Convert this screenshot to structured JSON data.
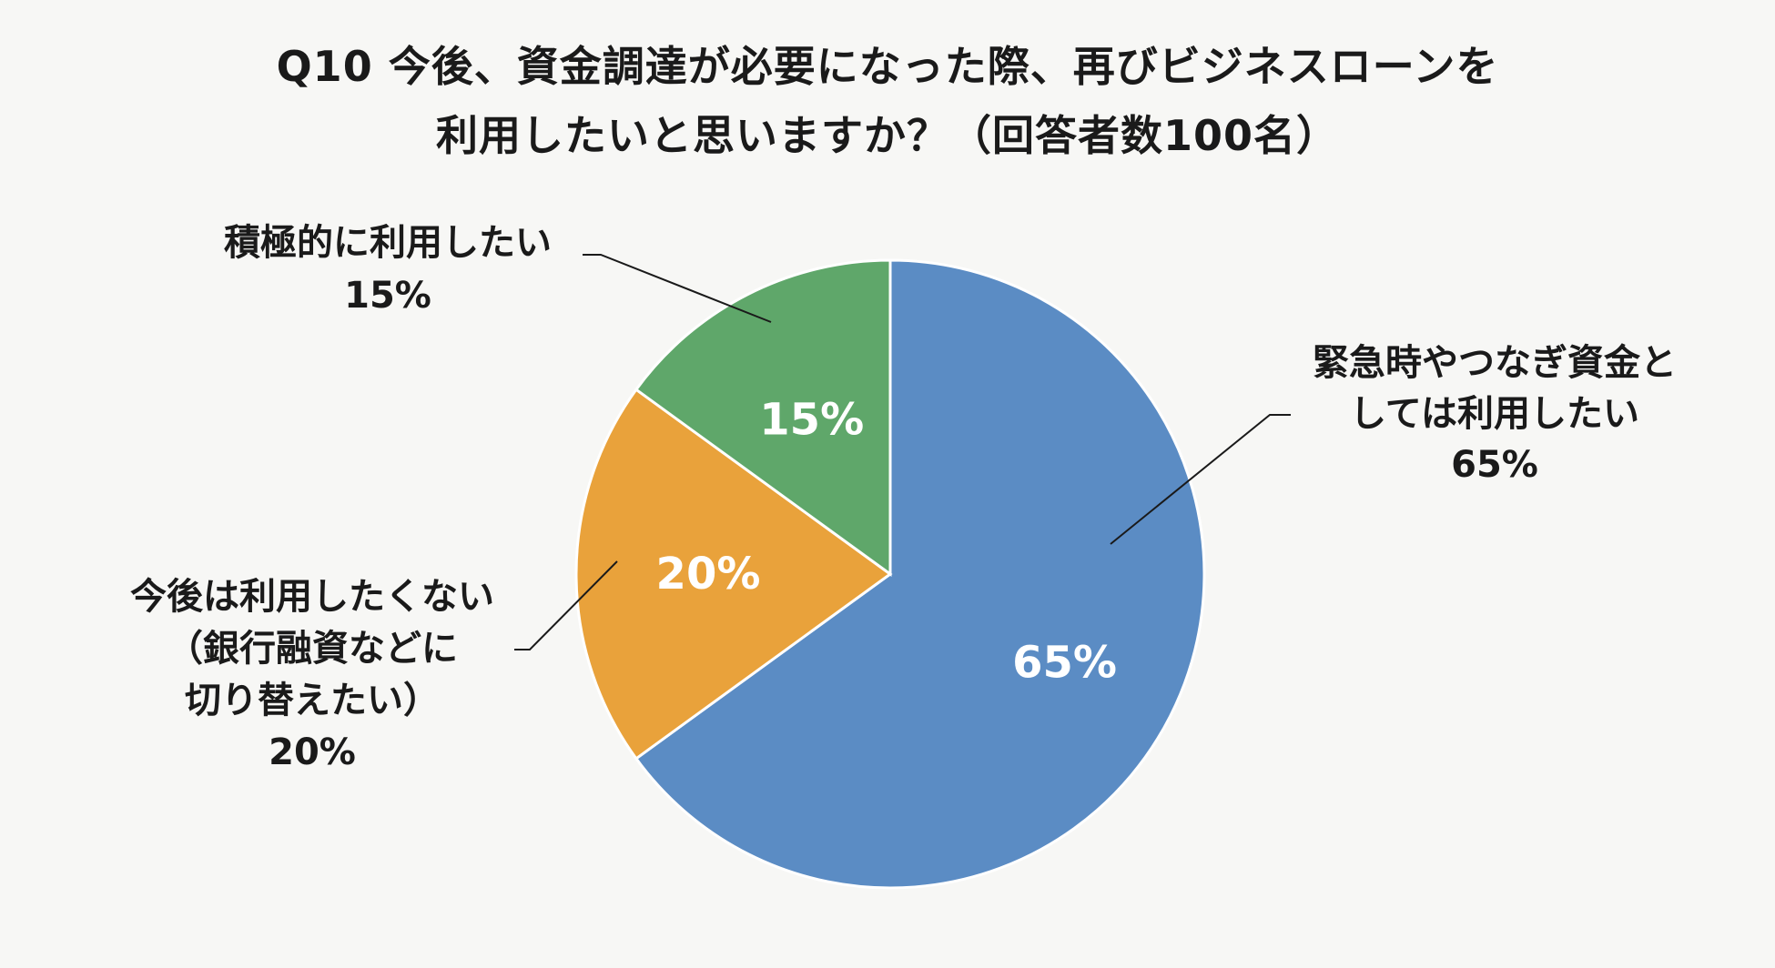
{
  "chart_data": {
    "type": "pie",
    "title": [
      "Q10 今後、資金調達が必要になった際、再びビジネスローンを",
      "利用したいと思いますか？（回答者数100名）"
    ],
    "categories": [
      "緊急時やつなぎ資金としては利用したい",
      "今後は利用したくない（銀行融資などに切り替えたい）",
      "積極的に利用したい"
    ],
    "values": [
      65,
      20,
      15
    ],
    "unit": "%",
    "slices": [
      {
        "label_lines": [
          "緊急時やつなぎ資金と",
          "しては利用したい"
        ],
        "value": 65,
        "value_text": "65%",
        "color": "#5b8cc4"
      },
      {
        "label_lines": [
          "今後は利用したくない",
          "（銀行融資などに",
          "切り替えたい）"
        ],
        "value": 20,
        "value_text": "20%",
        "color": "#e9a23b"
      },
      {
        "label_lines": [
          "積極的に利用したい"
        ],
        "value": 15,
        "value_text": "15%",
        "color": "#5fa76a"
      }
    ],
    "start_angle": "12 o'clock",
    "direction": "clockwise",
    "legend": "none"
  }
}
